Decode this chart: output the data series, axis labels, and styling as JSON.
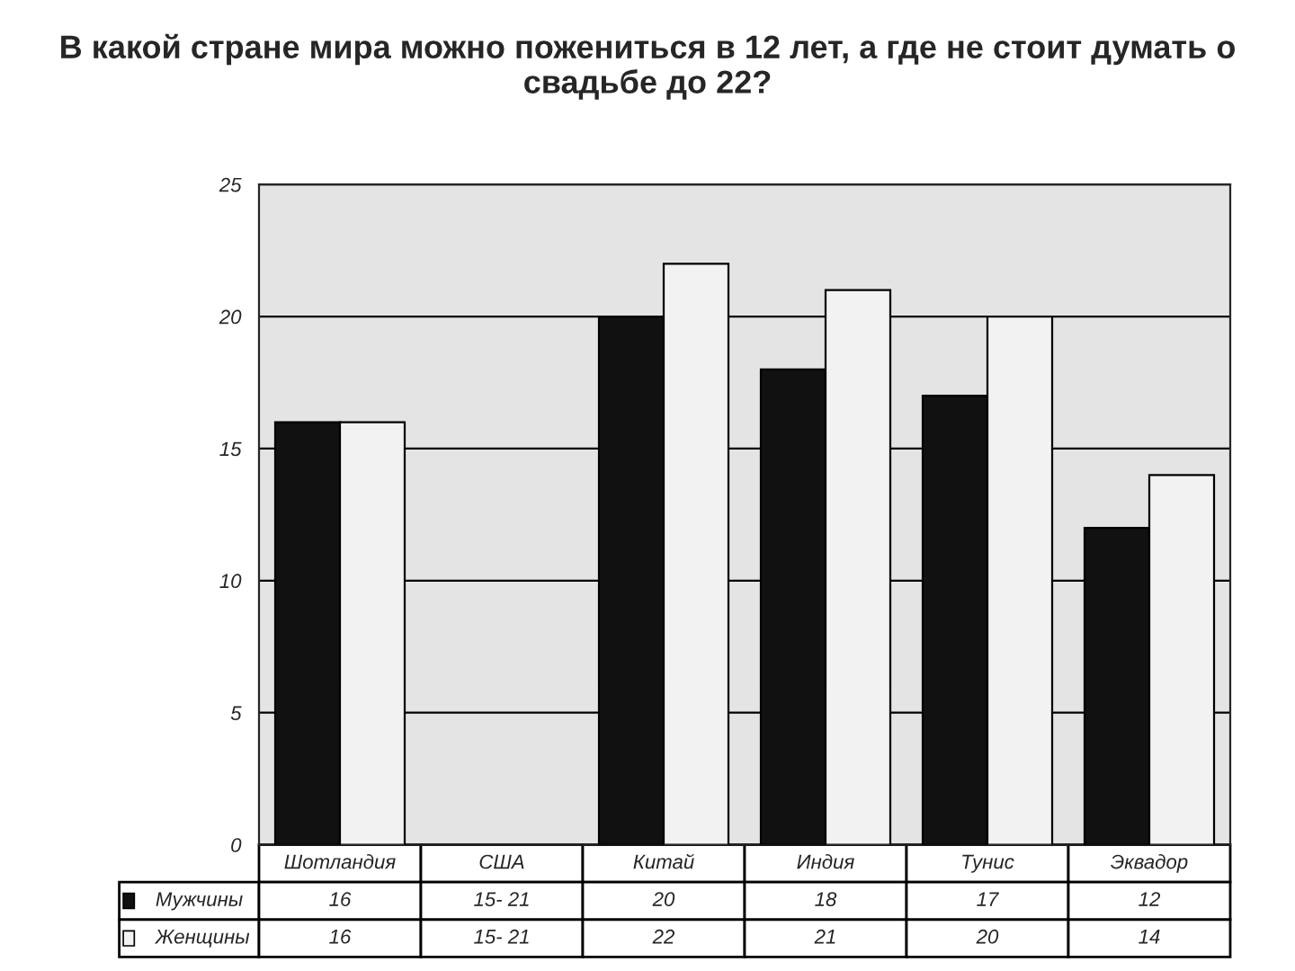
{
  "chart_data": {
    "type": "bar",
    "title": "В какой стране мира можно пожениться в 12 лет, а где не стоит думать о свадьбе до 22?",
    "categories": [
      "Шотландия",
      "США",
      "Китай",
      "Индия",
      "Тунис",
      "Эквадор"
    ],
    "series": [
      {
        "name": "Мужчины",
        "color": "#111111",
        "values": [
          16,
          null,
          20,
          18,
          17,
          12
        ],
        "value_labels": [
          "16",
          "15- 21",
          "20",
          "18",
          "17",
          "12"
        ]
      },
      {
        "name": "Женщины",
        "color": "#f2f2f2",
        "values": [
          16,
          null,
          22,
          21,
          20,
          14
        ],
        "value_labels": [
          "16",
          "15- 21",
          "22",
          "21",
          "20",
          "14"
        ]
      }
    ],
    "ylim": [
      0,
      25
    ],
    "yticks": [
      0,
      5,
      10,
      15,
      20,
      25
    ],
    "grid": "y",
    "legend": "bottom"
  }
}
